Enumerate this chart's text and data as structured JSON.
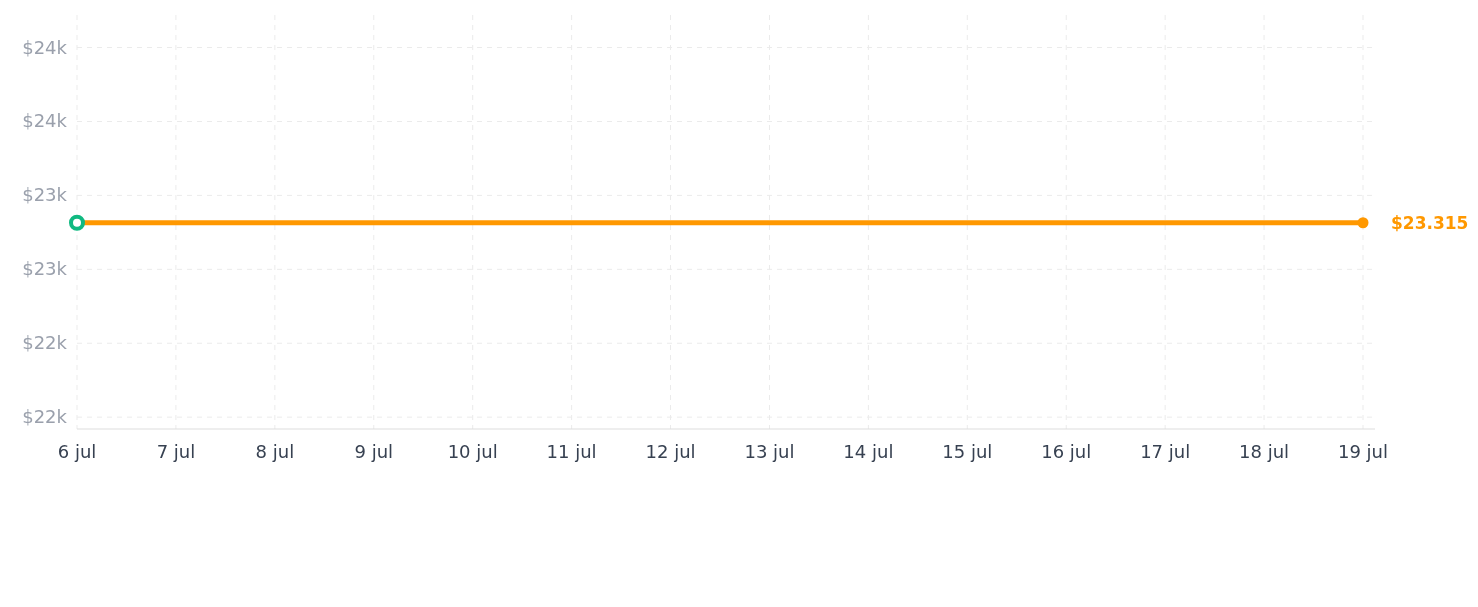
{
  "chart_data": {
    "type": "line",
    "xlim": [
      "--07-06",
      "--07-19"
    ],
    "xticks": [
      {
        "value": "--07-06",
        "label": "6 jul"
      },
      {
        "value": "--07-07",
        "label": "7 jul"
      },
      {
        "value": "--07-08",
        "label": "8 jul"
      },
      {
        "value": "--07-09",
        "label": "9 jul"
      },
      {
        "value": "--07-10",
        "label": "10 jul"
      },
      {
        "value": "--07-11",
        "label": "11 jul"
      },
      {
        "value": "--07-12",
        "label": "12 jul"
      },
      {
        "value": "--07-13",
        "label": "13 jul"
      },
      {
        "value": "--07-14",
        "label": "14 jul"
      },
      {
        "value": "--07-15",
        "label": "15 jul"
      },
      {
        "value": "--07-16",
        "label": "16 jul"
      },
      {
        "value": "--07-17",
        "label": "17 jul"
      },
      {
        "value": "--07-18",
        "label": "18 jul"
      },
      {
        "value": "--07-19",
        "label": "19 jul"
      }
    ],
    "ylim": [
      21.92,
      24.72
    ],
    "yticks": [
      {
        "value": 22,
        "label": "$22k"
      },
      {
        "value": 22.5,
        "label": "$22k"
      },
      {
        "value": 23,
        "label": "$23k"
      },
      {
        "value": 23.5,
        "label": "$23k"
      },
      {
        "value": 24,
        "label": "$24k"
      },
      {
        "value": 24.5,
        "label": "$24k"
      }
    ],
    "grid": true,
    "series": [
      {
        "color": "#ff9800",
        "x": [
          "--07-06",
          "--07-19"
        ],
        "values": [
          23.315,
          23.315
        ],
        "value_labels": [
          null,
          "$23.315"
        ],
        "marker": "circle"
      },
      {
        "type": "scatter",
        "color": "#10b981",
        "x": [
          "--07-06"
        ],
        "values": [
          23.315
        ],
        "marker": "circle"
      }
    ]
  }
}
